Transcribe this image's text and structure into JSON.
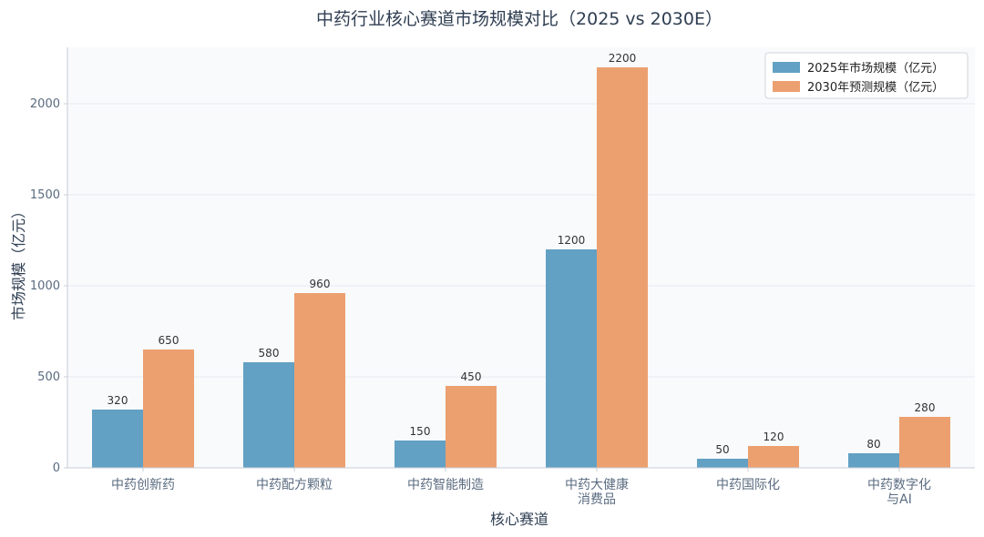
{
  "chart_data": {
    "type": "bar",
    "title": "中药行业核心赛道市场规模对比（2025 vs 2030E）",
    "xlabel": "核心赛道",
    "ylabel": "市场规模（亿元）",
    "categories": [
      [
        "中药创新药"
      ],
      [
        "中药配方颗粒"
      ],
      [
        "中药智能制造"
      ],
      [
        "中药大健康",
        "消费品"
      ],
      [
        "中药国际化"
      ],
      [
        "中药数字化",
        "与AI"
      ]
    ],
    "series": [
      {
        "name": "2025年市场规模（亿元）",
        "color": "#62a0c4",
        "values": [
          320,
          580,
          150,
          1200,
          50,
          80
        ]
      },
      {
        "name": "2030年预测规模（亿元）",
        "color": "#eca070",
        "values": [
          650,
          960,
          450,
          2200,
          120,
          280
        ]
      }
    ],
    "ylim": [
      0,
      2310
    ],
    "yticks": [
      0,
      500,
      1000,
      1500,
      2000
    ],
    "grid": true,
    "legend_position": "top-right"
  }
}
